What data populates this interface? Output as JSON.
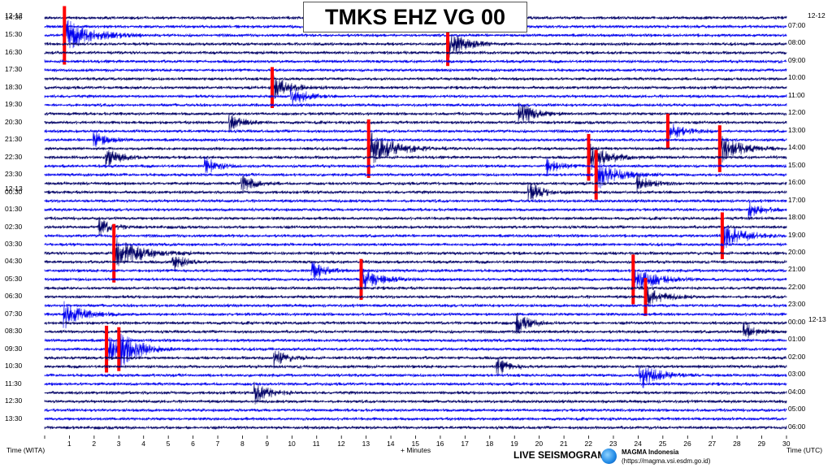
{
  "station_title": "TMKS EHZ VG 00",
  "left_axis": {
    "date_top": "12-12",
    "date_mid": "12-13",
    "labels": [
      "14:30",
      "15:30",
      "16:30",
      "17:30",
      "18:30",
      "19:30",
      "20:30",
      "21:30",
      "22:30",
      "23:30",
      "00:30",
      "01:30",
      "02:30",
      "03:30",
      "04:30",
      "05:30",
      "06:30",
      "07:30",
      "08:30",
      "09:30",
      "10:30",
      "11:30",
      "12:30",
      "13:30"
    ],
    "caption": "Time (WITA)"
  },
  "right_axis": {
    "date_top": "12-12",
    "date_mid": "12-13",
    "labels": [
      "07:00",
      "08:00",
      "09:00",
      "10:00",
      "11:00",
      "12:00",
      "13:00",
      "14:00",
      "15:00",
      "16:00",
      "17:00",
      "18:00",
      "19:00",
      "20:00",
      "21:00",
      "22:00",
      "23:00",
      "00:00",
      "01:00",
      "02:00",
      "03:00",
      "04:00",
      "05:00",
      "06:00"
    ],
    "caption": "Time (UTC)"
  },
  "bottom_axis": {
    "ticks": [
      "1",
      "2",
      "3",
      "4",
      "5",
      "6",
      "7",
      "8",
      "9",
      "10",
      "11",
      "12",
      "13",
      "14",
      "15",
      "16",
      "17",
      "18",
      "19",
      "20",
      "21",
      "22",
      "23",
      "24",
      "25",
      "26",
      "27",
      "28",
      "29",
      "30"
    ],
    "caption": "+ Minutes"
  },
  "footer": {
    "brand": "LIVE SEISMOGRAM",
    "org": "MAGMA Indonesia",
    "url": "(https://magma.vsi.esdm.go.id)"
  },
  "colors": {
    "trace_blue": "#0000ee",
    "trace_navy": "#000066",
    "clip_red": "#ff0000",
    "background": "#ffffff"
  },
  "chart_data": {
    "type": "seismogram-helicorder",
    "traces_per_hour": 2,
    "minutes_per_line": 30,
    "hours": 24,
    "xlim": [
      0,
      30
    ],
    "events": [
      {
        "row": 2,
        "minute": 0.8,
        "size": 2.0,
        "clip": true
      },
      {
        "row": 3,
        "minute": 16.3,
        "size": 1.5,
        "clip": true
      },
      {
        "row": 8,
        "minute": 9.2,
        "size": 1.4,
        "clip": true
      },
      {
        "row": 11,
        "minute": 19.2,
        "size": 1.3,
        "clip": false
      },
      {
        "row": 9,
        "minute": 10.0,
        "size": 1.1,
        "clip": false
      },
      {
        "row": 12,
        "minute": 7.5,
        "size": 1.0,
        "clip": false
      },
      {
        "row": 14,
        "minute": 2.0,
        "size": 1.0,
        "clip": false
      },
      {
        "row": 16,
        "minute": 2.5,
        "size": 1.1,
        "clip": false
      },
      {
        "row": 17,
        "minute": 20.3,
        "size": 1.0,
        "clip": false
      },
      {
        "row": 19,
        "minute": 24.0,
        "size": 1.0,
        "clip": false
      },
      {
        "row": 20,
        "minute": 19.6,
        "size": 1.1,
        "clip": false
      },
      {
        "row": 13,
        "minute": 25.2,
        "size": 1.2,
        "clip": true
      },
      {
        "row": 15,
        "minute": 13.1,
        "size": 2.0,
        "clip": true
      },
      {
        "row": 15,
        "minute": 27.3,
        "size": 1.6,
        "clip": true
      },
      {
        "row": 16,
        "minute": 22.0,
        "size": 1.6,
        "clip": true
      },
      {
        "row": 17,
        "minute": 6.5,
        "size": 1.0,
        "clip": false
      },
      {
        "row": 18,
        "minute": 22.3,
        "size": 1.7,
        "clip": true
      },
      {
        "row": 19,
        "minute": 8.0,
        "size": 1.0,
        "clip": false
      },
      {
        "row": 22,
        "minute": 28.5,
        "size": 1.0,
        "clip": false
      },
      {
        "row": 24,
        "minute": 2.2,
        "size": 1.0,
        "clip": false
      },
      {
        "row": 25,
        "minute": 27.4,
        "size": 1.6,
        "clip": true
      },
      {
        "row": 27,
        "minute": 2.8,
        "size": 2.0,
        "clip": true
      },
      {
        "row": 28,
        "minute": 5.2,
        "size": 1.0,
        "clip": false
      },
      {
        "row": 29,
        "minute": 10.8,
        "size": 1.1,
        "clip": false
      },
      {
        "row": 30,
        "minute": 12.8,
        "size": 1.4,
        "clip": true
      },
      {
        "row": 30,
        "minute": 23.8,
        "size": 1.7,
        "clip": true
      },
      {
        "row": 32,
        "minute": 24.3,
        "size": 1.3,
        "clip": true
      },
      {
        "row": 34,
        "minute": 0.8,
        "size": 1.5,
        "clip": false
      },
      {
        "row": 35,
        "minute": 19.1,
        "size": 1.1,
        "clip": false
      },
      {
        "row": 36,
        "minute": 28.3,
        "size": 1.0,
        "clip": false
      },
      {
        "row": 38,
        "minute": 2.5,
        "size": 1.6,
        "clip": true
      },
      {
        "row": 38,
        "minute": 3.0,
        "size": 1.5,
        "clip": true
      },
      {
        "row": 39,
        "minute": 9.3,
        "size": 1.0,
        "clip": false
      },
      {
        "row": 40,
        "minute": 18.3,
        "size": 1.0,
        "clip": false
      },
      {
        "row": 41,
        "minute": 24.1,
        "size": 1.5,
        "clip": false
      },
      {
        "row": 43,
        "minute": 8.5,
        "size": 1.2,
        "clip": false
      }
    ]
  }
}
